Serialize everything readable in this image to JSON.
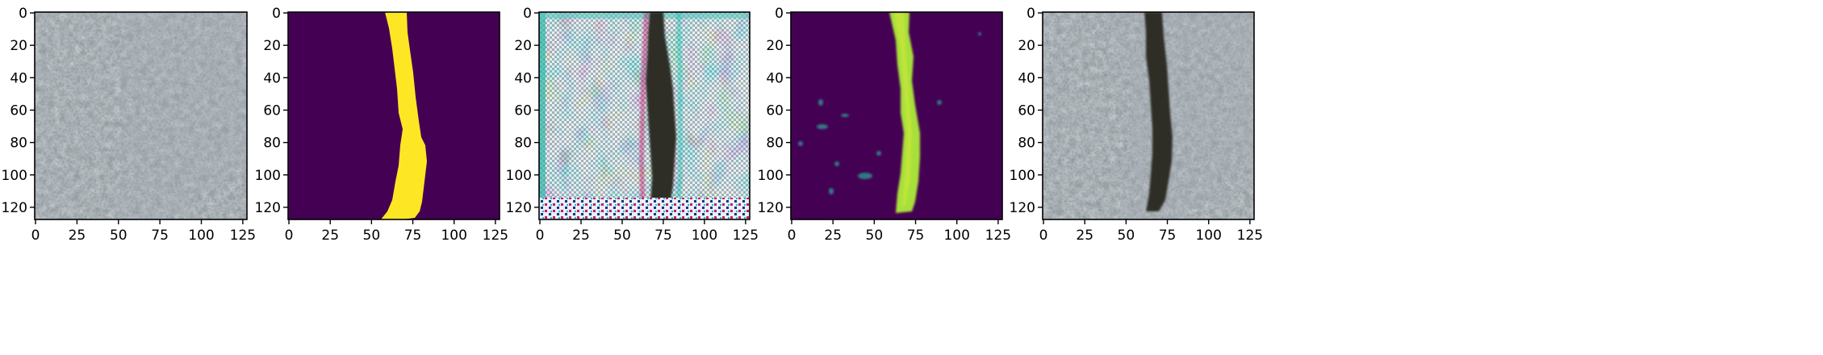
{
  "figure": {
    "panels": [
      {
        "kind": "input-photo-concrete",
        "x_ticks": [
          "0",
          "25",
          "50",
          "75",
          "100",
          "125"
        ],
        "y_ticks": [
          "0",
          "20",
          "40",
          "60",
          "80",
          "100",
          "120"
        ]
      },
      {
        "kind": "ground-truth-mask",
        "x_ticks": [
          "0",
          "25",
          "50",
          "75",
          "100",
          "125"
        ],
        "y_ticks": [
          "0",
          "20",
          "40",
          "60",
          "80",
          "100",
          "120"
        ]
      },
      {
        "kind": "generated-image-artifacts",
        "x_ticks": [
          "0",
          "25",
          "50",
          "75",
          "100",
          "125"
        ],
        "y_ticks": [
          "0",
          "20",
          "40",
          "60",
          "80",
          "100",
          "120"
        ]
      },
      {
        "kind": "predicted-probability-map",
        "x_ticks": [
          "0",
          "25",
          "50",
          "75",
          "100",
          "125"
        ],
        "y_ticks": [
          "0",
          "20",
          "40",
          "60",
          "80",
          "100",
          "120"
        ]
      },
      {
        "kind": "synthesized-cracked-photo",
        "x_ticks": [
          "0",
          "25",
          "50",
          "75",
          "100",
          "125"
        ],
        "y_ticks": [
          "0",
          "20",
          "40",
          "60",
          "80",
          "100",
          "120"
        ]
      }
    ],
    "image_extent": [
      0,
      128
    ],
    "x_tick_values": [
      0,
      25,
      50,
      75,
      100,
      125
    ],
    "y_tick_values": [
      0,
      20,
      40,
      60,
      80,
      100,
      120
    ],
    "colors": {
      "viridis_low": "#440154",
      "viridis_high": "#fde725",
      "viridis_mid": "#a8e03a",
      "concrete": "#8f979c",
      "crack": "#2a2a24"
    }
  }
}
